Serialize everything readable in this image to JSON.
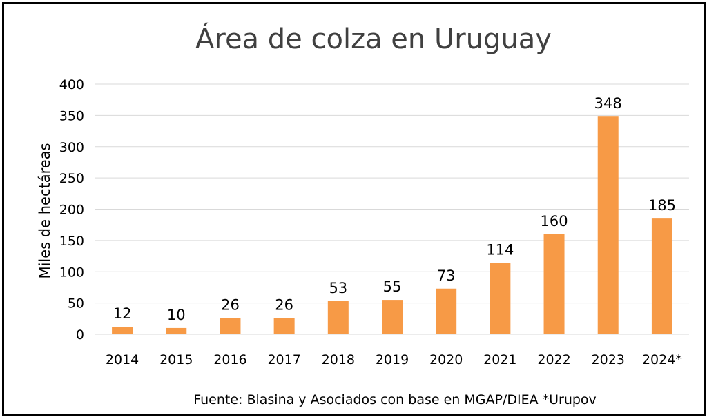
{
  "chart_data": {
    "type": "bar",
    "title": "Área de colza en Uruguay",
    "ylabel": "Miles de hectáreas",
    "xlabel": "",
    "categories": [
      "2014",
      "2015",
      "2016",
      "2017",
      "2018",
      "2019",
      "2020",
      "2021",
      "2022",
      "2023",
      "2024*"
    ],
    "values": [
      12,
      10,
      26,
      26,
      53,
      55,
      73,
      114,
      160,
      348,
      185
    ],
    "ylim": [
      0,
      400
    ],
    "yticks": [
      0,
      50,
      100,
      150,
      200,
      250,
      300,
      350,
      400
    ],
    "grid": true,
    "legend": "none",
    "bar_color": "#f79a46"
  },
  "source": "Fuente: Blasina y Asociados con base en MGAP/DIEA *Urupov"
}
